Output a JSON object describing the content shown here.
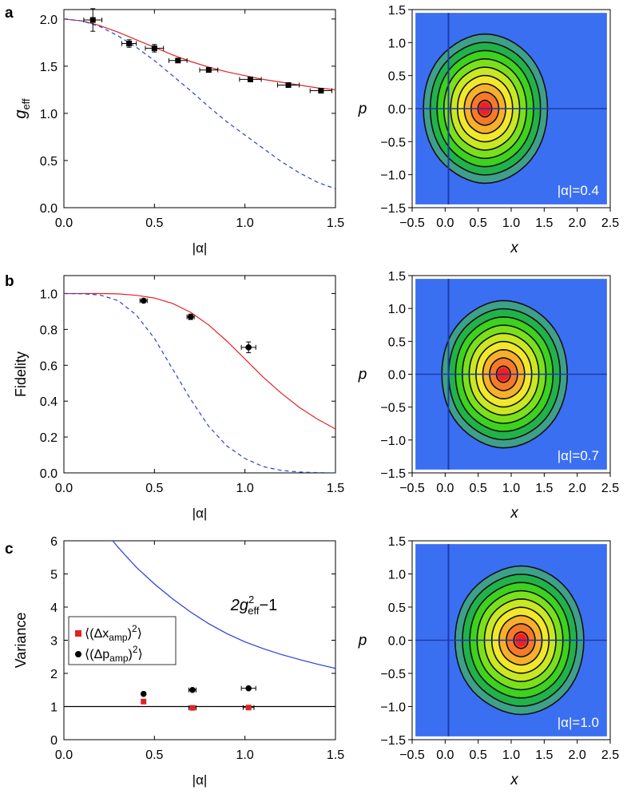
{
  "chart_data": [
    {
      "panel_label": "a",
      "type": "line",
      "xlabel": "|α|",
      "ylabel": "g",
      "ylabel_sub": "eff",
      "xlim": [
        0,
        1.5
      ],
      "ylim": [
        0,
        2.1
      ],
      "xticks": [
        0,
        0.5,
        1,
        1.5
      ],
      "xtick_labels": [
        "0.0",
        "0.5",
        "1.0",
        "1.5"
      ],
      "yticks": [
        0,
        0.5,
        1,
        1.5,
        2
      ],
      "ytick_labels": [
        "0.0",
        "0.5",
        "1.0",
        "1.5",
        "2.0"
      ],
      "series": [
        {
          "name": "theory",
          "style": "solid",
          "color": "#e32222",
          "x": [
            0,
            0.1,
            0.2,
            0.3,
            0.4,
            0.5,
            0.6,
            0.7,
            0.8,
            0.9,
            1.0,
            1.1,
            1.2,
            1.3,
            1.4,
            1.5
          ],
          "y": [
            2.0,
            1.98,
            1.93,
            1.86,
            1.78,
            1.7,
            1.62,
            1.55,
            1.49,
            1.44,
            1.4,
            1.36,
            1.33,
            1.3,
            1.27,
            1.25
          ]
        },
        {
          "name": "classical",
          "style": "dashed",
          "color": "#2b3fd6",
          "x": [
            0,
            0.1,
            0.2,
            0.3,
            0.4,
            0.5,
            0.6,
            0.7,
            0.8,
            0.9,
            1.0,
            1.1,
            1.2,
            1.3,
            1.4,
            1.5
          ],
          "y": [
            2.0,
            1.98,
            1.92,
            1.82,
            1.7,
            1.56,
            1.4,
            1.24,
            1.07,
            0.91,
            0.77,
            0.63,
            0.49,
            0.37,
            0.27,
            0.2
          ]
        },
        {
          "name": "data",
          "style": "markers",
          "marker": "square",
          "color": "#000000",
          "x": [
            0.16,
            0.36,
            0.5,
            0.63,
            0.8,
            1.03,
            1.24,
            1.42
          ],
          "y": [
            1.99,
            1.74,
            1.69,
            1.56,
            1.46,
            1.36,
            1.3,
            1.24
          ],
          "xerr": [
            0.05,
            0.04,
            0.05,
            0.05,
            0.05,
            0.06,
            0.06,
            0.06
          ],
          "yerr": [
            0.12,
            0.04,
            0.04,
            0.02,
            0.02,
            0.02,
            0.02,
            0.02
          ]
        }
      ]
    },
    {
      "panel_label": "b",
      "type": "line",
      "xlabel": "|α|",
      "ylabel": "Fidelity",
      "xlim": [
        0,
        1.5
      ],
      "ylim": [
        0,
        1.1
      ],
      "xticks": [
        0,
        0.5,
        1,
        1.5
      ],
      "xtick_labels": [
        "0.0",
        "0.5",
        "1.0",
        "1.5"
      ],
      "yticks": [
        0,
        0.2,
        0.4,
        0.6,
        0.8,
        1.0
      ],
      "ytick_labels": [
        "0.0",
        "0.2",
        "0.4",
        "0.6",
        "0.8",
        "1.0"
      ],
      "series": [
        {
          "name": "theory",
          "style": "solid",
          "color": "#e32222",
          "x": [
            0,
            0.1,
            0.2,
            0.3,
            0.4,
            0.5,
            0.6,
            0.7,
            0.8,
            0.9,
            1.0,
            1.1,
            1.2,
            1.3,
            1.4,
            1.5
          ],
          "y": [
            1.0,
            1.0,
            1.0,
            0.998,
            0.99,
            0.975,
            0.945,
            0.895,
            0.825,
            0.735,
            0.635,
            0.535,
            0.445,
            0.365,
            0.3,
            0.245
          ]
        },
        {
          "name": "classical",
          "style": "dashed",
          "color": "#2b3fd6",
          "x": [
            0,
            0.1,
            0.2,
            0.3,
            0.4,
            0.5,
            0.6,
            0.7,
            0.8,
            0.9,
            1.0,
            1.1,
            1.2,
            1.3,
            1.4,
            1.5
          ],
          "y": [
            1.0,
            0.999,
            0.992,
            0.96,
            0.88,
            0.75,
            0.58,
            0.41,
            0.26,
            0.15,
            0.08,
            0.035,
            0.014,
            0.005,
            0.002,
            0.0
          ]
        },
        {
          "name": "data",
          "style": "markers",
          "marker": "circle",
          "color": "#000000",
          "x": [
            0.44,
            0.7,
            1.02
          ],
          "y": [
            0.96,
            0.87,
            0.7
          ],
          "xerr": [
            0.02,
            0.02,
            0.04
          ],
          "yerr": [
            0.01,
            0.015,
            0.03
          ]
        }
      ]
    },
    {
      "panel_label": "c",
      "type": "line",
      "xlabel": "|α|",
      "ylabel": "Variance",
      "xlim": [
        0,
        1.5
      ],
      "ylim": [
        0,
        6
      ],
      "xticks": [
        0,
        0.5,
        1,
        1.5
      ],
      "xtick_labels": [
        "0.0",
        "0.5",
        "1.0",
        "1.5"
      ],
      "yticks": [
        0,
        1,
        2,
        3,
        4,
        5,
        6
      ],
      "ytick_labels": [
        "0",
        "1",
        "2",
        "3",
        "4",
        "5",
        "6"
      ],
      "curve_label": {
        "prefix": "2g",
        "sup": "2",
        "sub": "eff",
        "suffix": "−1"
      },
      "legend": [
        {
          "label_pre": "⟨(Δx",
          "label_sub": "amp",
          "label_post": ")",
          "label_sup": "2",
          "label_end": "⟩",
          "marker": "square",
          "color": "#e32222"
        },
        {
          "label_pre": "⟨(Δp",
          "label_sub": "amp",
          "label_post": ")",
          "label_sup": "2",
          "label_end": "⟩",
          "marker": "circle",
          "color": "#000000"
        }
      ],
      "series": [
        {
          "name": "2g_eff^2-1",
          "style": "solid",
          "color": "#2b3fd6",
          "x": [
            0.27,
            0.3,
            0.35,
            0.4,
            0.5,
            0.6,
            0.7,
            0.8,
            0.9,
            1.0,
            1.1,
            1.2,
            1.3,
            1.4,
            1.5
          ],
          "y": [
            6.0,
            5.8,
            5.5,
            5.2,
            4.7,
            4.25,
            3.85,
            3.5,
            3.2,
            2.95,
            2.75,
            2.57,
            2.42,
            2.28,
            2.15
          ]
        },
        {
          "name": "unity",
          "style": "solid",
          "color": "#000000",
          "x": [
            0,
            1.5
          ],
          "y": [
            1,
            1
          ]
        },
        {
          "name": "Δx_amp^2",
          "style": "markers",
          "marker": "square",
          "color": "#e32222",
          "x": [
            0.44,
            0.71,
            1.02
          ],
          "y": [
            1.15,
            0.96,
            0.97
          ],
          "xerr": [
            0.0,
            0.02,
            0.03
          ],
          "yerr": [
            0.0,
            0.0,
            0.0
          ]
        },
        {
          "name": "Δp_amp^2",
          "style": "markers",
          "marker": "circle",
          "color": "#000000",
          "x": [
            0.44,
            0.71,
            1.02
          ],
          "y": [
            1.38,
            1.5,
            1.55
          ],
          "xerr": [
            0.0,
            0.02,
            0.04
          ],
          "yerr": [
            0.0,
            0.0,
            0.0
          ]
        }
      ]
    },
    {
      "type": "heatmap",
      "kind": "wigner-contour",
      "xlabel": "x",
      "ylabel": "p",
      "xlim": [
        -0.5,
        2.5
      ],
      "ylim": [
        -1.5,
        1.5
      ],
      "xtick_labels": [
        "−0.5",
        "0.0",
        "0.5",
        "1.0",
        "1.5",
        "2.0",
        "2.5"
      ],
      "ytick_labels": [
        "−1.5",
        "−1.0",
        "−0.5",
        "0.0",
        "0.5",
        "1.0",
        "1.5"
      ],
      "annotation": "|α|=0.4",
      "center_x": 0.6,
      "outer_left": -0.33,
      "outer_right": 1.55,
      "outer_p": 1.13,
      "levels": 8
    },
    {
      "type": "heatmap",
      "kind": "wigner-contour",
      "xlabel": "x",
      "ylabel": "p",
      "xlim": [
        -0.5,
        2.5
      ],
      "ylim": [
        -1.5,
        1.5
      ],
      "xtick_labels": [
        "−0.5",
        "0.0",
        "0.5",
        "1.0",
        "1.5",
        "2.0",
        "2.5"
      ],
      "ytick_labels": [
        "−1.5",
        "−1.0",
        "−0.5",
        "0.0",
        "0.5",
        "1.0",
        "1.5"
      ],
      "annotation": "|α|=0.7",
      "center_x": 0.88,
      "outer_left": -0.05,
      "outer_right": 1.85,
      "outer_p": 1.12,
      "levels": 8
    },
    {
      "type": "heatmap",
      "kind": "wigner-contour",
      "xlabel": "x",
      "ylabel": "p",
      "xlim": [
        -0.5,
        2.5
      ],
      "ylim": [
        -1.5,
        1.5
      ],
      "xtick_labels": [
        "−0.5",
        "0.0",
        "0.5",
        "1.0",
        "1.5",
        "2.0",
        "2.5"
      ],
      "ytick_labels": [
        "−1.5",
        "−1.0",
        "−0.5",
        "0.0",
        "0.5",
        "1.0",
        "1.5"
      ],
      "annotation": "|α|=1.0",
      "center_x": 1.15,
      "outer_left": 0.15,
      "outer_right": 2.1,
      "outer_p": 1.12,
      "levels": 8
    }
  ],
  "colors": {
    "background_blue": "#3b6ff2",
    "axis_line_blue": "#1e3aa8",
    "outer": "#3fa08a",
    "ring_colors": [
      "#3fa08a",
      "#22b24a",
      "#3cd21e",
      "#7be01c",
      "#c9e823",
      "#f2e82b",
      "#f6b02b",
      "#f47a29",
      "#f04a26"
    ],
    "center": "#ee2020"
  }
}
